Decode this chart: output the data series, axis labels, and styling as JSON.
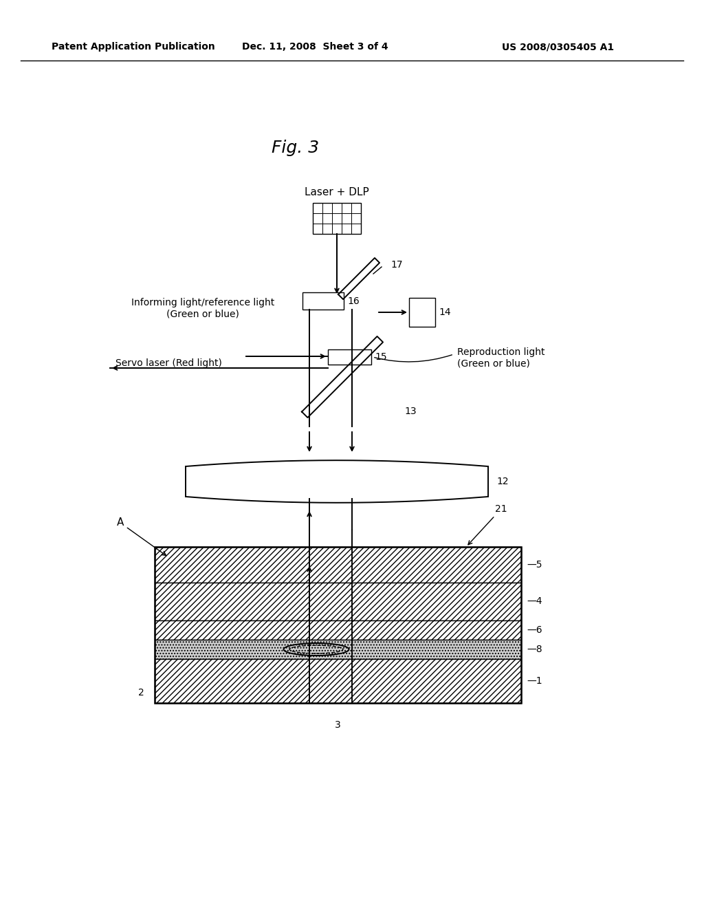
{
  "bg_color": "#ffffff",
  "header_left": "Patent Application Publication",
  "header_mid": "Dec. 11, 2008  Sheet 3 of 4",
  "header_right": "US 2008/0305405 A1",
  "fig_label": "Fig. 3",
  "label_fontsize": 11,
  "header_fontsize": 10,
  "fig_label_fontsize": 18
}
